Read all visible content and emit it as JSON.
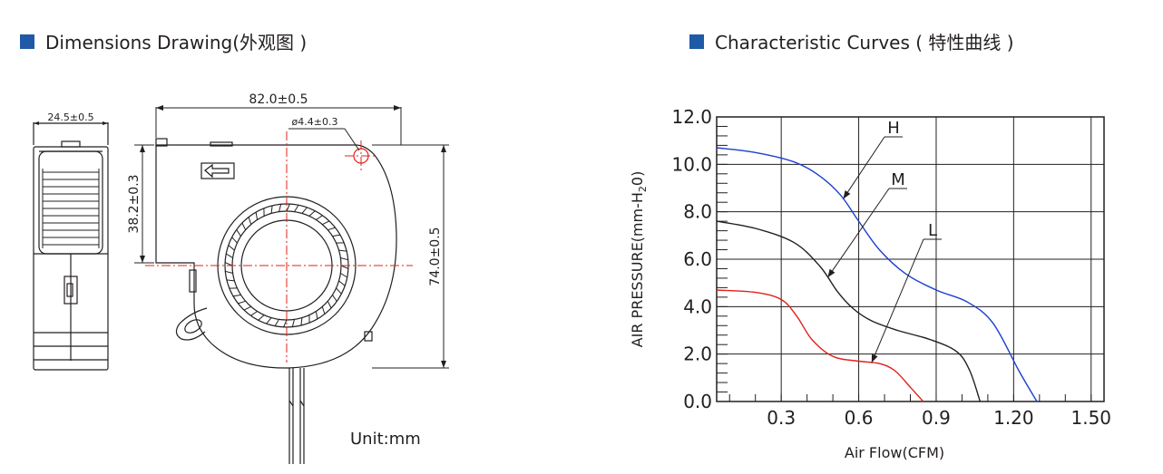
{
  "dimensions": {
    "title": "Dimensions Drawing(外观图 )",
    "width_label": "82.0±0.5",
    "depth_label": "24.5±0.5",
    "hole_label": "ø4.4±0.3",
    "outlet_label": "38.2±0.3",
    "height_label": "74.0±0.5",
    "unit_label": "Unit:mm"
  },
  "curves": {
    "title": "Characteristic Curves ( 特性曲线 )",
    "accent_color": "#1f5aa6"
  },
  "chart_data": {
    "type": "line",
    "title": "",
    "xlabel": "Air Flow(CFM)",
    "ylabel_main": "AIR PRESSURE(mm-H",
    "ylabel_sub": "2",
    "ylabel_tail": "0)",
    "xlim": [
      0.05,
      1.55
    ],
    "ylim": [
      0,
      12
    ],
    "x_ticks": [
      0.3,
      0.6,
      0.9,
      1.2,
      1.5
    ],
    "x_tick_labels": [
      "0.3",
      "0.6",
      "0.9",
      "1.20",
      "1.50"
    ],
    "y_ticks": [
      0,
      2,
      4,
      6,
      8,
      10,
      12
    ],
    "y_tick_labels": [
      "0.0",
      "2.0",
      "4.0",
      "6.0",
      "8.0",
      "10.0",
      "12.0"
    ],
    "grid": true,
    "series": [
      {
        "name": "H",
        "color": "#1c3fcf",
        "x": [
          0.05,
          0.2,
          0.35,
          0.45,
          0.53,
          0.6,
          0.68,
          0.78,
          0.9,
          1.02,
          1.12,
          1.22,
          1.29
        ],
        "y": [
          10.7,
          10.5,
          10.1,
          9.5,
          8.7,
          7.6,
          6.4,
          5.4,
          4.7,
          4.2,
          3.3,
          1.3,
          0.0
        ]
      },
      {
        "name": "M",
        "color": "#231f20",
        "x": [
          0.05,
          0.2,
          0.35,
          0.45,
          0.52,
          0.58,
          0.65,
          0.75,
          0.88,
          0.98,
          1.03,
          1.07
        ],
        "y": [
          7.6,
          7.3,
          6.7,
          5.7,
          4.6,
          3.9,
          3.4,
          3.0,
          2.6,
          2.1,
          1.3,
          0.0
        ]
      },
      {
        "name": "L",
        "color": "#e3201b",
        "x": [
          0.05,
          0.2,
          0.3,
          0.36,
          0.42,
          0.5,
          0.6,
          0.68,
          0.74,
          0.8,
          0.85
        ],
        "y": [
          4.7,
          4.6,
          4.3,
          3.6,
          2.6,
          1.9,
          1.7,
          1.6,
          1.3,
          0.6,
          0.0
        ]
      }
    ],
    "annotations": [
      {
        "text": "H",
        "series": "H",
        "at_x": 0.54
      },
      {
        "text": "M",
        "series": "M",
        "at_x": 0.48
      },
      {
        "text": "L",
        "series": "L",
        "at_x": 0.65
      }
    ]
  }
}
